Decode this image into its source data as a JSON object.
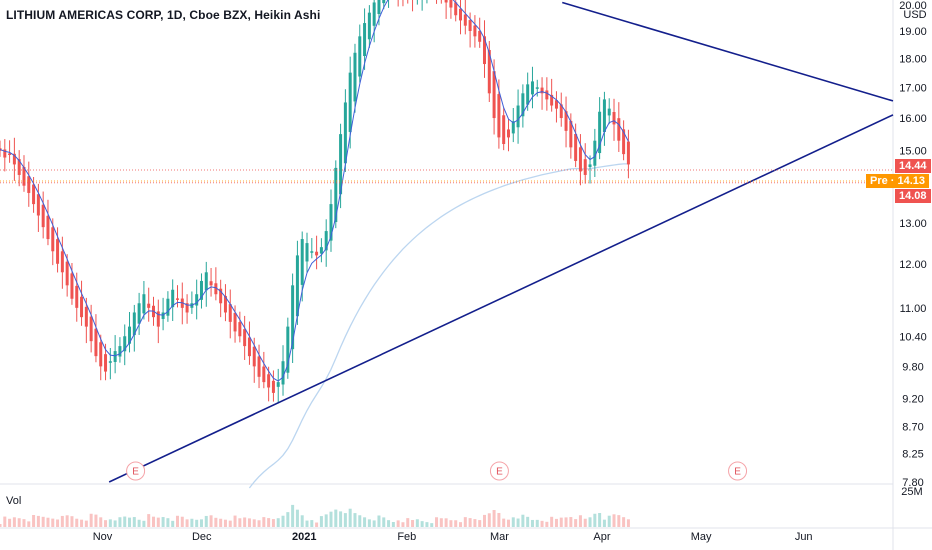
{
  "header": {
    "title": "LITHIUM AMERICAS CORP, 1D, Cboe BZX, Heikin Ashi",
    "currency": "USD",
    "volume_label": "Vol",
    "volume_scale": "25M"
  },
  "price_tags": [
    {
      "label": "14.44",
      "color": "#ef5350"
    },
    {
      "label": "Pre · 14.13",
      "color": "#ff9800"
    },
    {
      "label": "14.08",
      "color": "#ef5350"
    }
  ],
  "earnings_marker": "E",
  "colors": {
    "up": "#26a69a",
    "down": "#ef5350",
    "trendline": "#131f8c",
    "ma_fast": "#3e5fd8",
    "ma_slow": "#bcd6f0"
  },
  "chart_data": {
    "type": "candlestick",
    "title": "LITHIUM AMERICAS CORP, 1D, Cboe BZX, Heikin Ashi",
    "y_scale": "log",
    "ylim": [
      7.8,
      20.0
    ],
    "y_ticks": [
      "20.00",
      "19.00",
      "18.00",
      "17.00",
      "16.00",
      "15.00",
      "13.00",
      "12.00",
      "11.00",
      "10.40",
      "9.80",
      "9.20",
      "8.70",
      "8.25",
      "7.80"
    ],
    "x_ticks": [
      "Nov",
      "Dec",
      "2021",
      "Feb",
      "Mar",
      "Apr",
      "May",
      "Jun"
    ],
    "x_tick_dates": [
      "2020-11-01",
      "2020-12-01",
      "2021-01-01",
      "2021-02-01",
      "2021-03-01",
      "2021-04-01",
      "2021-05-01",
      "2021-06-01"
    ],
    "x_range": [
      "2020-10-01",
      "2021-06-28"
    ],
    "last_date": "2021-04-09",
    "candles_close_approx": [
      15.0,
      14.8,
      14.9,
      14.6,
      14.3,
      14.0,
      13.8,
      13.5,
      13.2,
      12.9,
      12.6,
      12.3,
      12.0,
      11.8,
      11.5,
      11.2,
      11.0,
      10.8,
      10.6,
      10.3,
      10.0,
      9.8,
      9.7,
      9.9,
      10.1,
      10.2,
      10.4,
      10.6,
      10.9,
      11.1,
      11.3,
      11.0,
      10.8,
      10.6,
      10.9,
      11.2,
      11.4,
      11.2,
      11.0,
      10.9,
      11.1,
      11.3,
      11.6,
      11.8,
      11.5,
      11.3,
      11.1,
      10.9,
      10.7,
      10.5,
      10.4,
      10.2,
      10.0,
      9.8,
      9.6,
      9.5,
      9.4,
      9.3,
      9.5,
      9.9,
      10.6,
      11.5,
      12.2,
      12.6,
      12.5,
      12.3,
      12.2,
      12.4,
      12.8,
      13.5,
      14.5,
      15.5,
      16.5,
      17.5,
      18.2,
      18.8,
      19.3,
      19.7,
      20.1,
      20.5,
      20.8,
      20.9,
      20.9,
      20.6,
      20.4,
      20.3,
      20.3,
      20.5,
      20.6,
      20.7,
      20.8,
      20.6,
      20.4,
      20.1,
      19.9,
      19.6,
      19.4,
      19.2,
      19.0,
      18.8,
      18.6,
      17.8,
      16.8,
      16.0,
      15.4,
      15.2,
      15.4,
      15.9,
      16.4,
      16.8,
      17.1,
      17.2,
      17.0,
      16.8,
      16.6,
      16.4,
      16.3,
      16.0,
      15.6,
      15.1,
      14.7,
      14.4,
      14.3,
      14.6,
      15.3,
      16.2,
      16.6,
      16.3,
      15.8,
      15.3,
      14.9,
      14.6
    ],
    "series": [
      {
        "name": "MA fast",
        "type": "line"
      },
      {
        "name": "MA slow",
        "type": "line"
      },
      {
        "name": "Trendline support",
        "type": "line",
        "points": [
          [
            "2020-11-03",
            7.8
          ],
          [
            "2021-06-28",
            16.1
          ]
        ]
      },
      {
        "name": "Trendline resistance",
        "type": "line",
        "points": [
          [
            "2021-03-20",
            20.1
          ],
          [
            "2021-06-28",
            16.55
          ]
        ]
      }
    ],
    "earnings_dates": [
      "2020-11-11",
      "2021-03-01",
      "2021-05-12"
    ],
    "last_price": 14.44,
    "pre_market": 14.13,
    "prev_close": 14.08
  }
}
